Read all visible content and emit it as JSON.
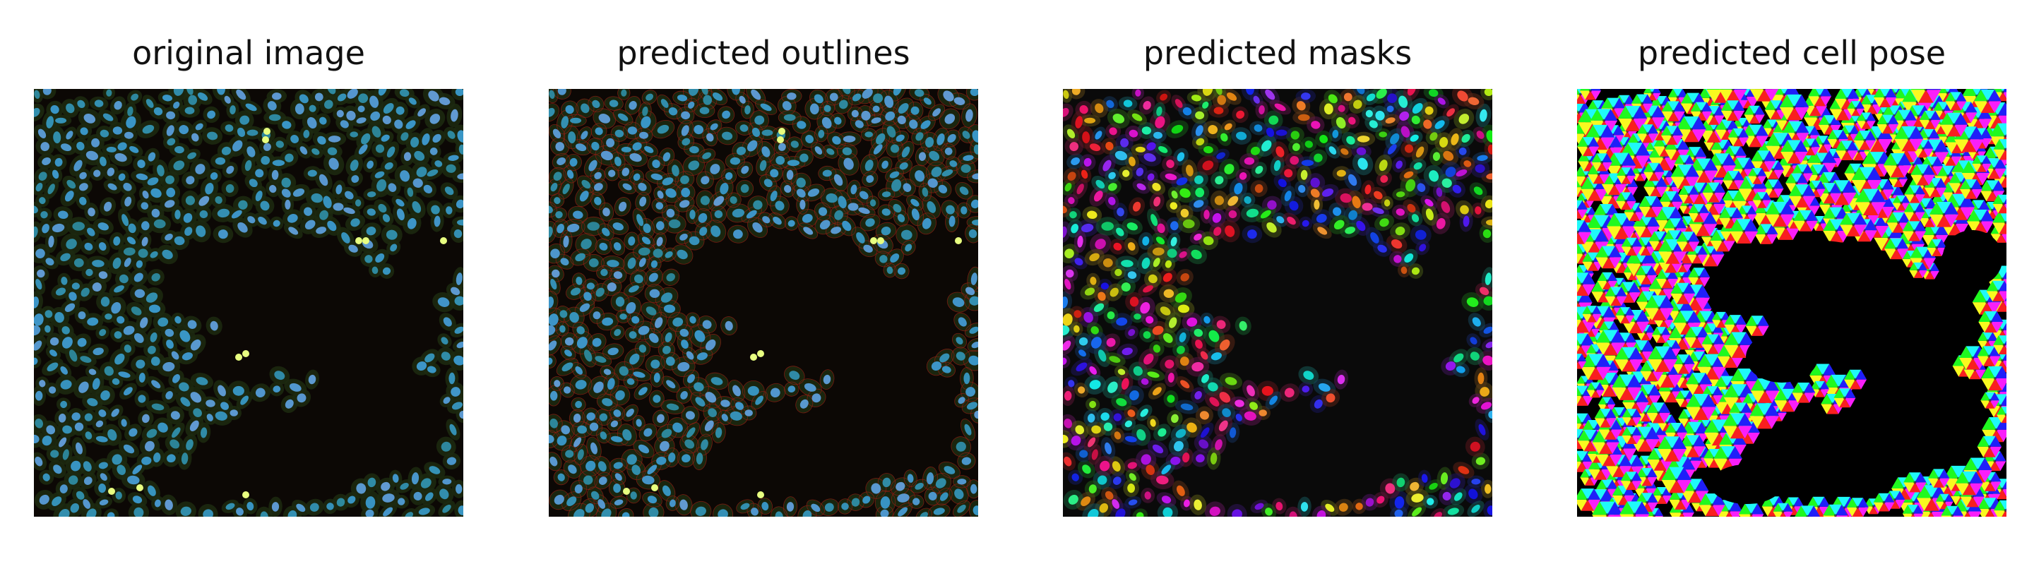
{
  "figure": {
    "panels": [
      {
        "title": "original image",
        "style": "raw"
      },
      {
        "title": "predicted outlines",
        "style": "outlines"
      },
      {
        "title": "predicted masks",
        "style": "masks"
      },
      {
        "title": "predicted cell pose",
        "style": "flows"
      }
    ]
  },
  "colors": {
    "background": "#ffffff",
    "image_dark": "#0c0805",
    "nucleus": "#3fa9c8",
    "cytoplasm": "#1d2a10",
    "outline": "#a01e14",
    "bright_spot": "#e8ff80"
  }
}
